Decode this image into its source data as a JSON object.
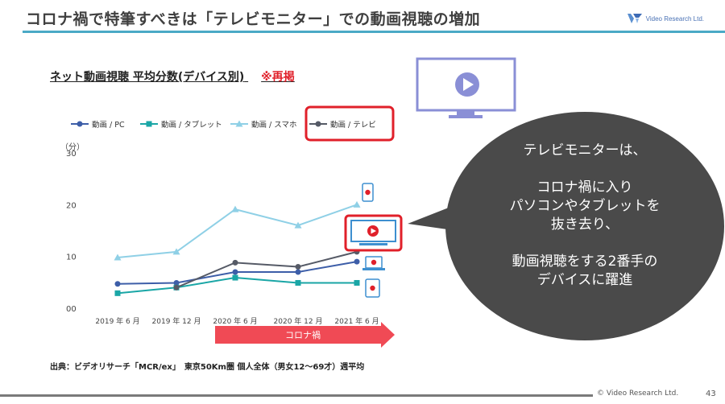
{
  "header": {
    "title": "コロナ禍で特筆すべきは「テレビモニター」での動画視聴の増加",
    "logo_text": "Video Research Ltd."
  },
  "subtitle": {
    "text": "ネット動画視聴 平均分数(デバイス別)",
    "note": "※再掲"
  },
  "chart_data": {
    "type": "line",
    "categories": [
      "2019 年 6 月",
      "2019 年 12 月",
      "2020 年 6 月",
      "2020 年 12 月",
      "2021 年 6 月"
    ],
    "ylabel": "（分）",
    "ylim": [
      0,
      30
    ],
    "yticks": [
      "00",
      "10",
      "20",
      "30"
    ],
    "grid": false,
    "legend_position": "top",
    "series": [
      {
        "name": "動画 / PC",
        "values": [
          4.7,
          4.9,
          7.0,
          7.0,
          9.0
        ],
        "color": "#3d5ea8",
        "marker": "circle"
      },
      {
        "name": "動画 / タブレット",
        "values": [
          2.9,
          4.0,
          5.9,
          4.9,
          4.9
        ],
        "color": "#1aa6a6",
        "marker": "square"
      },
      {
        "name": "動画 / スマホ",
        "values": [
          9.8,
          10.9,
          19.1,
          16.0,
          20.0
        ],
        "color": "#8fd0e6",
        "marker": "triangle"
      },
      {
        "name": "動画 / テレビ",
        "values": [
          null,
          4.0,
          8.8,
          8.0,
          10.9
        ],
        "color": "#555a66",
        "marker": "circle"
      }
    ],
    "highlighted_series": "動画 / テレビ",
    "annotation_arrow": "コロナ禍"
  },
  "bubble": {
    "lines": [
      "テレビモニターは、",
      "",
      "コロナ禍に入り",
      "パソコンやタブレットを",
      "抜き去り、",
      "",
      "動画視聴をする2番手の",
      "デバイスに躍進"
    ]
  },
  "icons": [
    "tv-monitor-icon",
    "smartphone-icon",
    "laptop-icon",
    "tablet-icon",
    "play-icon"
  ],
  "colors": {
    "accent": "#4aa9c6",
    "highlight": "#e0202a",
    "bubble": "#4a4a4a",
    "tv": "#8a8fd6"
  },
  "source": "出典：ビデオリサーチ「MCR/ex」　東京50Km圏 個人全体（男女12〜69才）週平均",
  "footer": {
    "copyright": "© Video Research Ltd.",
    "page": "43"
  }
}
